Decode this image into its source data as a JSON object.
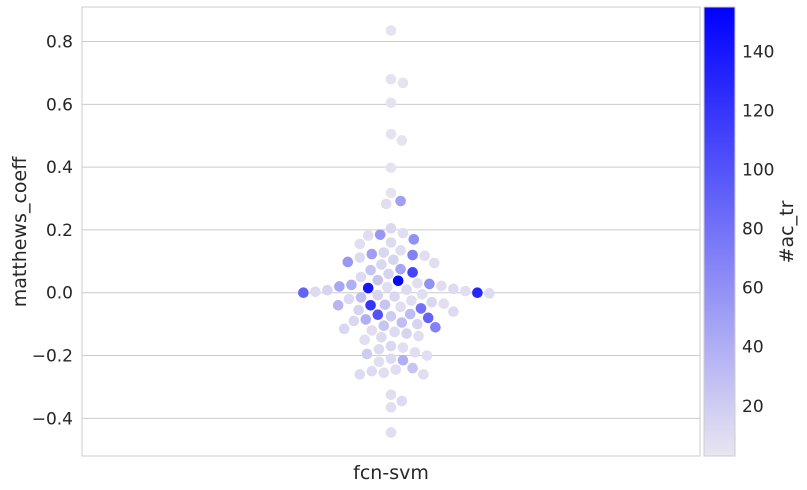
{
  "chart_data": {
    "type": "scatter",
    "subtype": "swarm",
    "xlabel": "",
    "ylabel": "matthews_coeff",
    "categories": [
      "fcn-svm"
    ],
    "ylim": [
      -0.52,
      0.91
    ],
    "yticks": [
      -0.4,
      -0.2,
      0.0,
      0.2,
      0.4,
      0.6,
      0.8
    ],
    "ytick_labels": [
      "−0.4",
      "−0.2",
      "0.0",
      "0.2",
      "0.4",
      "0.6",
      "0.8"
    ],
    "grid": true,
    "colorbar": {
      "label": "#ac_tr",
      "range": [
        3,
        155
      ],
      "ticks": [
        20,
        40,
        60,
        80,
        100,
        120,
        140
      ],
      "tick_labels": [
        "20",
        "40",
        "60",
        "80",
        "100",
        "120",
        "140"
      ],
      "color_low": "#e8e6f0",
      "color_high": "#0000ff"
    },
    "points": [
      {
        "y": 0.835,
        "c": 5
      },
      {
        "y": 0.68,
        "c": 5
      },
      {
        "y": 0.668,
        "c": 5
      },
      {
        "y": 0.605,
        "c": 5
      },
      {
        "y": 0.505,
        "c": 5
      },
      {
        "y": 0.485,
        "c": 5
      },
      {
        "y": 0.398,
        "c": 5
      },
      {
        "y": 0.318,
        "c": 5
      },
      {
        "y": 0.292,
        "c": 50
      },
      {
        "y": 0.283,
        "c": 8
      },
      {
        "y": 0.205,
        "c": 12
      },
      {
        "y": 0.19,
        "c": 8
      },
      {
        "y": 0.185,
        "c": 55
      },
      {
        "y": 0.182,
        "c": 8
      },
      {
        "y": 0.17,
        "c": 60
      },
      {
        "y": 0.16,
        "c": 10
      },
      {
        "y": 0.155,
        "c": 8
      },
      {
        "y": 0.135,
        "c": 8
      },
      {
        "y": 0.128,
        "c": 12
      },
      {
        "y": 0.123,
        "c": 50
      },
      {
        "y": 0.12,
        "c": 70
      },
      {
        "y": 0.118,
        "c": 8
      },
      {
        "y": 0.112,
        "c": 10
      },
      {
        "y": 0.105,
        "c": 15
      },
      {
        "y": 0.098,
        "c": 55
      },
      {
        "y": 0.095,
        "c": 8
      },
      {
        "y": 0.09,
        "c": 12
      },
      {
        "y": 0.075,
        "c": 45
      },
      {
        "y": 0.072,
        "c": 25
      },
      {
        "y": 0.065,
        "c": 110
      },
      {
        "y": 0.06,
        "c": 15
      },
      {
        "y": 0.05,
        "c": 10
      },
      {
        "y": 0.04,
        "c": 25
      },
      {
        "y": 0.038,
        "c": 150
      },
      {
        "y": 0.03,
        "c": 8
      },
      {
        "y": 0.028,
        "c": 60
      },
      {
        "y": 0.025,
        "c": 40
      },
      {
        "y": 0.022,
        "c": 8
      },
      {
        "y": 0.02,
        "c": 45
      },
      {
        "y": 0.018,
        "c": 8
      },
      {
        "y": 0.015,
        "c": 140
      },
      {
        "y": 0.012,
        "c": 10
      },
      {
        "y": 0.01,
        "c": 10
      },
      {
        "y": 0.008,
        "c": 15
      },
      {
        "y": 0.005,
        "c": 8
      },
      {
        "y": 0.003,
        "c": 10
      },
      {
        "y": 0.0,
        "c": 130
      },
      {
        "y": 0.0,
        "c": 90
      },
      {
        "y": -0.002,
        "c": 10
      },
      {
        "y": -0.005,
        "c": 8
      },
      {
        "y": -0.008,
        "c": 15
      },
      {
        "y": -0.012,
        "c": 12
      },
      {
        "y": -0.015,
        "c": 30
      },
      {
        "y": -0.02,
        "c": 10
      },
      {
        "y": -0.025,
        "c": 8
      },
      {
        "y": -0.03,
        "c": 12
      },
      {
        "y": -0.035,
        "c": 8
      },
      {
        "y": -0.038,
        "c": 25
      },
      {
        "y": -0.04,
        "c": 120
      },
      {
        "y": -0.04,
        "c": 35
      },
      {
        "y": -0.045,
        "c": 8
      },
      {
        "y": -0.05,
        "c": 80
      },
      {
        "y": -0.055,
        "c": 15
      },
      {
        "y": -0.06,
        "c": 10
      },
      {
        "y": -0.068,
        "c": 30
      },
      {
        "y": -0.07,
        "c": 100
      },
      {
        "y": -0.075,
        "c": 20
      },
      {
        "y": -0.08,
        "c": 90
      },
      {
        "y": -0.085,
        "c": 40
      },
      {
        "y": -0.09,
        "c": 12
      },
      {
        "y": -0.095,
        "c": 30
      },
      {
        "y": -0.1,
        "c": 15
      },
      {
        "y": -0.105,
        "c": 25
      },
      {
        "y": -0.11,
        "c": 70
      },
      {
        "y": -0.115,
        "c": 12
      },
      {
        "y": -0.12,
        "c": 8
      },
      {
        "y": -0.125,
        "c": 10
      },
      {
        "y": -0.13,
        "c": 15
      },
      {
        "y": -0.138,
        "c": 8
      },
      {
        "y": -0.142,
        "c": 10
      },
      {
        "y": -0.15,
        "c": 8
      },
      {
        "y": -0.17,
        "c": 12
      },
      {
        "y": -0.175,
        "c": 8
      },
      {
        "y": -0.18,
        "c": 10
      },
      {
        "y": -0.19,
        "c": 8
      },
      {
        "y": -0.195,
        "c": 20
      },
      {
        "y": -0.2,
        "c": 8
      },
      {
        "y": -0.21,
        "c": 10
      },
      {
        "y": -0.215,
        "c": 40
      },
      {
        "y": -0.22,
        "c": 8
      },
      {
        "y": -0.24,
        "c": 25
      },
      {
        "y": -0.245,
        "c": 8
      },
      {
        "y": -0.25,
        "c": 10
      },
      {
        "y": -0.255,
        "c": 8
      },
      {
        "y": -0.26,
        "c": 10
      },
      {
        "y": -0.26,
        "c": 8
      },
      {
        "y": -0.325,
        "c": 8
      },
      {
        "y": -0.345,
        "c": 10
      },
      {
        "y": -0.365,
        "c": 8
      },
      {
        "y": -0.445,
        "c": 8
      }
    ]
  }
}
